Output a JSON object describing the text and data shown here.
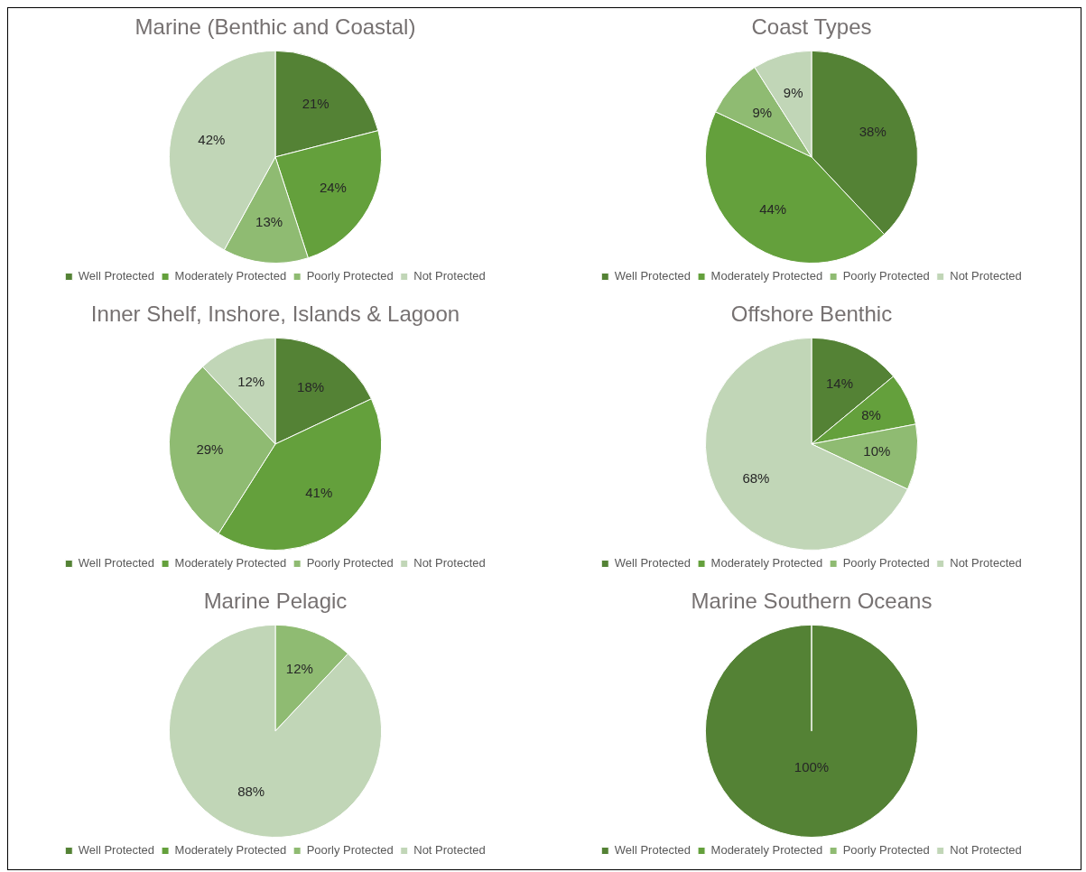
{
  "chart_data": [
    {
      "type": "pie",
      "title": "Marine (Benthic and Coastal)",
      "categories": [
        "Well Protected",
        "Moderately Protected",
        "Poorly Protected",
        "Not Protected"
      ],
      "values": [
        21,
        24,
        13,
        42
      ],
      "colors": [
        "#548235",
        "#64a03c",
        "#8fbb72",
        "#c1d6b7"
      ],
      "value_labels": [
        "21%",
        "24%",
        "13%",
        "42%"
      ],
      "legend": "bottom"
    },
    {
      "type": "pie",
      "title": "Coast Types",
      "categories": [
        "Well Protected",
        "Moderately Protected",
        "Poorly Protected",
        "Not Protected"
      ],
      "values": [
        38,
        44,
        9,
        9
      ],
      "colors": [
        "#548235",
        "#64a03c",
        "#8fbb72",
        "#c1d6b7"
      ],
      "value_labels": [
        "38%",
        "44%",
        "9%",
        "9%"
      ],
      "legend": "bottom"
    },
    {
      "type": "pie",
      "title": "Inner Shelf, Inshore, Islands & Lagoon",
      "categories": [
        "Well Protected",
        "Moderately Protected",
        "Poorly Protected",
        "Not Protected"
      ],
      "values": [
        18,
        41,
        29,
        12
      ],
      "colors": [
        "#548235",
        "#64a03c",
        "#8fbb72",
        "#c1d6b7"
      ],
      "value_labels": [
        "18%",
        "41%",
        "29%",
        "12%"
      ],
      "legend": "bottom"
    },
    {
      "type": "pie",
      "title": "Offshore Benthic",
      "categories": [
        "Well Protected",
        "Moderately Protected",
        "Poorly Protected",
        "Not Protected"
      ],
      "values": [
        14,
        8,
        10,
        68
      ],
      "colors": [
        "#548235",
        "#64a03c",
        "#8fbb72",
        "#c1d6b7"
      ],
      "value_labels": [
        "14%",
        "8%",
        "10%",
        "68%"
      ],
      "legend": "bottom"
    },
    {
      "type": "pie",
      "title": "Marine Pelagic",
      "categories": [
        "Well Protected",
        "Moderately Protected",
        "Poorly Protected",
        "Not Protected"
      ],
      "values": [
        0,
        0,
        12,
        88
      ],
      "colors": [
        "#548235",
        "#64a03c",
        "#8fbb72",
        "#c1d6b7"
      ],
      "value_labels": [
        null,
        null,
        "12%",
        "88%"
      ],
      "legend": "bottom"
    },
    {
      "type": "pie",
      "title": "Marine Southern Oceans",
      "categories": [
        "Well Protected",
        "Moderately Protected",
        "Poorly Protected",
        "Not Protected"
      ],
      "values": [
        100,
        0,
        0,
        0
      ],
      "colors": [
        "#548235",
        "#64a03c",
        "#8fbb72",
        "#c1d6b7"
      ],
      "value_labels": [
        "100%",
        null,
        null,
        null
      ],
      "legend": "bottom"
    }
  ]
}
